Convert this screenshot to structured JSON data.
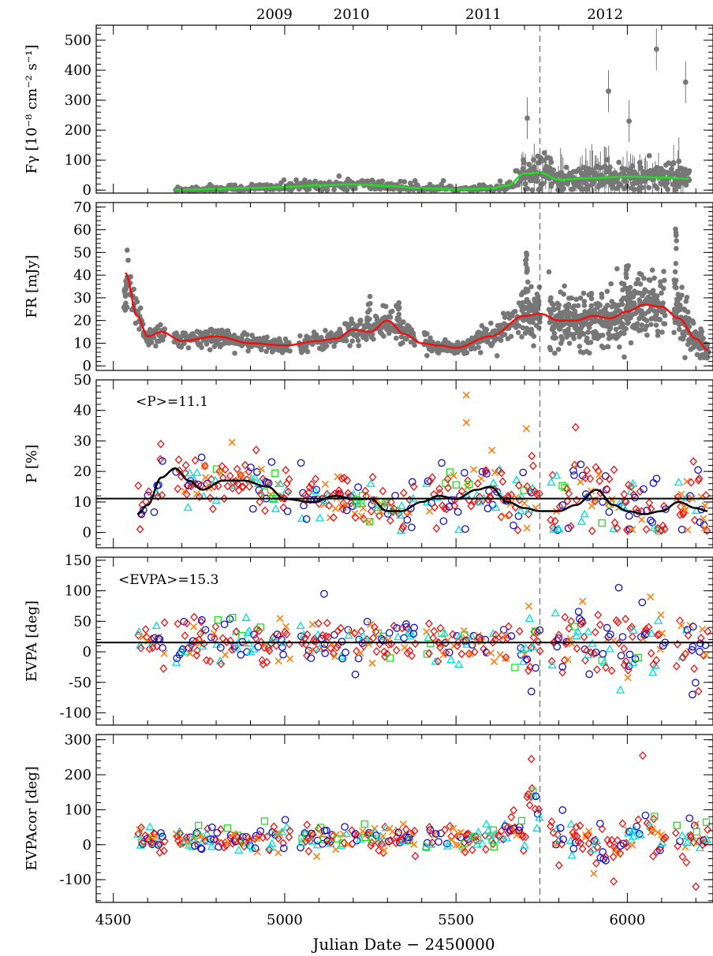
{
  "figure": {
    "xlabel": "Julian Date − 2450000",
    "years": [
      {
        "label": "2009",
        "jd": 4970
      },
      {
        "label": "2010",
        "jd": 5195
      },
      {
        "label": "2011",
        "jd": 5580
      },
      {
        "label": "2012",
        "jd": 5935
      }
    ],
    "event_line_jd": 5745,
    "colors": {
      "gray_points": "#777777",
      "green_curve": "#22dd22",
      "red_curve": "#ee1111",
      "black_curve": "#000000",
      "red_diamond": "#ee1111",
      "blue_circle": "#1111cc",
      "orange_x": "#ff7f0e",
      "cyan_triangle": "#00dddd",
      "green_square": "#22dd22"
    }
  },
  "chart_data": [
    {
      "type": "scatter",
      "panel": "gamma",
      "ylabel": "Fγ [10⁻⁸ cm⁻² s⁻¹]",
      "xlim": [
        4450,
        6250
      ],
      "ylim": [
        -10,
        550
      ],
      "yticks": [
        0,
        100,
        200,
        300,
        400,
        500
      ],
      "xticks": [
        4500,
        5000,
        5500,
        6000
      ],
      "smooth_curve": {
        "x": [
          4680,
          4800,
          4900,
          5000,
          5100,
          5200,
          5300,
          5400,
          5500,
          5600,
          5650,
          5700,
          5745,
          5800,
          5900,
          6000,
          6100,
          6180
        ],
        "y": [
          1,
          4,
          7,
          10,
          16,
          19,
          14,
          6,
          3,
          5,
          15,
          55,
          58,
          35,
          40,
          45,
          42,
          38
        ]
      },
      "points_summary": {
        "x_range": [
          4680,
          6180
        ],
        "notable_peaks": [
          [
            5708,
            240
          ],
          [
            5945,
            330
          ],
          [
            6005,
            230
          ],
          [
            6085,
            470
          ],
          [
            6170,
            360
          ]
        ]
      }
    },
    {
      "type": "scatter",
      "panel": "optical_flux",
      "ylabel": "FR [mJy]",
      "xlim": [
        4450,
        6250
      ],
      "ylim": [
        -2,
        72
      ],
      "yticks": [
        0,
        10,
        20,
        30,
        40,
        50,
        60,
        70
      ],
      "xticks": [
        4500,
        5000,
        5500,
        6000
      ],
      "smooth_curve": {
        "x": [
          4535,
          4570,
          4600,
          4640,
          4700,
          4800,
          4900,
          5000,
          5100,
          5150,
          5200,
          5250,
          5300,
          5350,
          5400,
          5450,
          5500,
          5600,
          5700,
          5745,
          5800,
          5850,
          5900,
          5950,
          6000,
          6050,
          6100,
          6150,
          6200,
          6235
        ],
        "y": [
          41,
          22,
          13,
          15,
          11,
          13,
          10,
          9,
          11,
          12,
          16,
          15,
          20,
          14,
          10,
          9,
          8,
          13,
          22,
          23,
          20,
          20,
          22,
          21,
          24,
          27,
          26,
          21,
          12,
          7
        ]
      },
      "points_summary": {
        "x_range": [
          4535,
          6235
        ],
        "notable_peaks": [
          [
            4535,
            41
          ],
          [
            5245,
            31
          ],
          [
            5330,
            29
          ],
          [
            5705,
            56
          ],
          [
            6000,
            46
          ],
          [
            6140,
            62
          ]
        ]
      }
    },
    {
      "type": "scatter",
      "panel": "polarization_degree",
      "ylabel": "P [%]",
      "annotation": "<P>=11.1",
      "mean": 11.1,
      "xlim": [
        4450,
        6250
      ],
      "ylim": [
        -5,
        50
      ],
      "yticks": [
        0,
        10,
        20,
        30,
        40,
        50
      ],
      "xticks": [
        4500,
        5000,
        5500,
        6000
      ],
      "smooth_curve": {
        "x": [
          4570,
          4600,
          4640,
          4680,
          4720,
          4760,
          4820,
          4880,
          4950,
          5000,
          5080,
          5150,
          5200,
          5250,
          5300,
          5340,
          5400,
          5450,
          5500,
          5560,
          5600,
          5650,
          5700,
          5745,
          5800,
          5850,
          5910,
          5960,
          6000,
          6050,
          6100,
          6150,
          6200,
          6235
        ],
        "y": [
          6,
          9,
          18,
          21,
          17,
          14,
          17,
          17,
          15,
          11,
          10,
          12,
          11,
          11,
          7,
          7,
          10,
          12,
          11,
          14,
          15,
          10,
          8,
          7,
          7,
          9,
          14,
          9,
          7,
          6,
          7,
          10,
          8,
          7
        ]
      },
      "points_summary": {
        "x_range": [
          4570,
          6235
        ],
        "notable_outliers": [
          [
            5530,
            45
          ],
          [
            5530,
            36
          ],
          [
            5705,
            34
          ]
        ]
      }
    },
    {
      "type": "scatter",
      "panel": "evpa",
      "ylabel": "EVPA [deg]",
      "annotation": "<EVPA>=15.3",
      "mean": 15.3,
      "xlim": [
        4450,
        6250
      ],
      "ylim": [
        -120,
        155
      ],
      "yticks": [
        -100,
        -50,
        0,
        50,
        100,
        150
      ],
      "xticks": [
        4500,
        5000,
        5500,
        6000
      ],
      "points_summary": {
        "x_range": [
          4570,
          6235
        ],
        "notable_extremes": [
          [
            5115,
            95
          ],
          [
            5975,
            105
          ],
          [
            5720,
            -65
          ],
          [
            6190,
            -70
          ]
        ]
      }
    },
    {
      "type": "scatter",
      "panel": "evpa_corrected",
      "ylabel": "EVPAcor [deg]",
      "xlim": [
        4450,
        6250
      ],
      "ylim": [
        -165,
        315
      ],
      "yticks": [
        -100,
        0,
        100,
        200,
        300
      ],
      "xticks": [
        4500,
        5000,
        5500,
        6000
      ],
      "points_summary": {
        "x_range": [
          4570,
          6235
        ],
        "notable_extremes": [
          [
            5720,
            245
          ],
          [
            6045,
            255
          ],
          [
            5960,
            -105
          ],
          [
            6200,
            -120
          ]
        ]
      }
    }
  ]
}
